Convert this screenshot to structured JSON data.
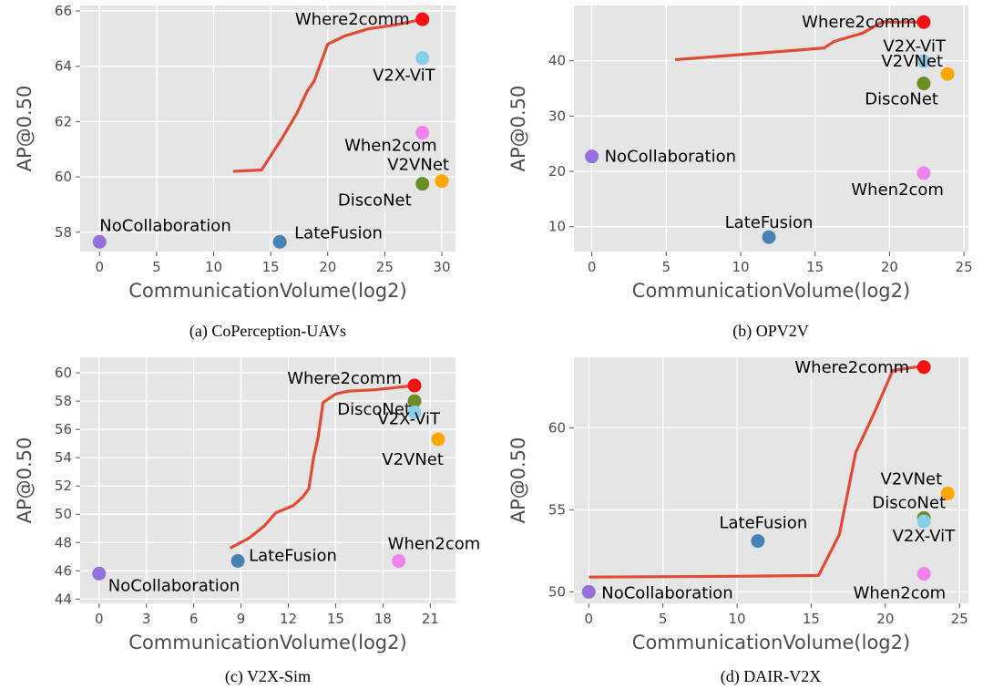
{
  "colors": {
    "panel_bg": "#e5e5e5",
    "grid": "#ffffff",
    "line": "#e24a33",
    "Where2comm": "#f21212",
    "V2X-ViT": "#87ceeb",
    "When2com": "#ee82ee",
    "V2VNet": "#ffa500",
    "DiscoNet": "#6b8e23",
    "NoCollaboration": "#9370db",
    "LateFusion": "#4682b4"
  },
  "chart_data": [
    {
      "type": "scatter",
      "caption": "(a) CoPerception-UAVs",
      "xlabel": "CommunicationVolume(log2)",
      "ylabel": "AP@0.50",
      "xlim": [
        -1.7,
        31.2
      ],
      "ylim": [
        57.3,
        66.2
      ],
      "xticks": [
        0,
        5,
        10,
        15,
        20,
        25,
        30
      ],
      "yticks": [
        58,
        60,
        62,
        64,
        66
      ],
      "grid": true,
      "line": {
        "name": "Where2comm",
        "x": [
          11.7,
          14.2,
          16.0,
          17.3,
          18.2,
          18.8,
          20.0,
          21.5,
          23.5,
          26.0,
          28.3
        ],
        "y": [
          60.2,
          60.25,
          61.4,
          62.3,
          63.1,
          63.45,
          64.8,
          65.1,
          65.35,
          65.5,
          65.7
        ]
      },
      "points": [
        {
          "name": "Where2comm",
          "x": 28.3,
          "y": 65.7
        },
        {
          "name": "V2X-ViT",
          "x": 28.3,
          "y": 64.3
        },
        {
          "name": "When2com",
          "x": 28.3,
          "y": 61.6
        },
        {
          "name": "V2VNet",
          "x": 30.0,
          "y": 59.85
        },
        {
          "name": "DiscoNet",
          "x": 28.3,
          "y": 59.75
        },
        {
          "name": "NoCollaboration",
          "x": 0,
          "y": 57.65
        },
        {
          "name": "LateFusion",
          "x": 15.8,
          "y": 57.65
        }
      ]
    },
    {
      "type": "scatter",
      "caption": "(b) OPV2V",
      "xlabel": "CommunicationVolume(log2)",
      "ylabel": "AP@0.50",
      "xlim": [
        -1.2,
        25.3
      ],
      "ylim": [
        5.5,
        50
      ],
      "xticks": [
        0,
        5,
        10,
        15,
        20,
        25
      ],
      "yticks": [
        10,
        20,
        30,
        40
      ],
      "grid": true,
      "line": {
        "name": "Where2comm",
        "x": [
          5.6,
          15.6,
          16.3,
          18.2,
          19.5,
          22.3
        ],
        "y": [
          40.2,
          42.3,
          43.5,
          45.0,
          47.0,
          47.0
        ]
      },
      "points": [
        {
          "name": "Where2comm",
          "x": 22.3,
          "y": 47.0
        },
        {
          "name": "V2X-ViT",
          "x": 22.3,
          "y": 39.9
        },
        {
          "name": "V2VNet",
          "x": 23.9,
          "y": 37.6
        },
        {
          "name": "DiscoNet",
          "x": 22.3,
          "y": 35.9
        },
        {
          "name": "NoCollaboration",
          "x": 0,
          "y": 22.7
        },
        {
          "name": "When2com",
          "x": 22.3,
          "y": 19.7
        },
        {
          "name": "LateFusion",
          "x": 11.9,
          "y": 8.1
        }
      ]
    },
    {
      "type": "scatter",
      "caption": "(c) V2X-Sim",
      "xlabel": "CommunicationVolume(log2)",
      "ylabel": "AP@0.50",
      "xlim": [
        -1.2,
        22.6
      ],
      "ylim": [
        43.7,
        61.1
      ],
      "xticks": [
        0,
        3,
        6,
        9,
        12,
        15,
        18,
        21
      ],
      "yticks": [
        44,
        46,
        48,
        50,
        52,
        54,
        56,
        58,
        60
      ],
      "grid": true,
      "line": {
        "name": "Where2comm",
        "x": [
          8.3,
          9.5,
          10.5,
          11.2,
          12.3,
          12.9,
          13.3,
          13.6,
          13.9,
          14.2,
          15.0,
          15.8,
          17.5,
          20.0
        ],
        "y": [
          47.6,
          48.3,
          49.2,
          50.1,
          50.6,
          51.2,
          51.8,
          54.0,
          55.5,
          57.9,
          58.5,
          58.7,
          58.8,
          59.1
        ]
      },
      "points": [
        {
          "name": "Where2comm",
          "x": 20.0,
          "y": 59.1
        },
        {
          "name": "DiscoNet",
          "x": 20.0,
          "y": 58.0
        },
        {
          "name": "V2X-ViT",
          "x": 20.0,
          "y": 57.2
        },
        {
          "name": "V2VNet",
          "x": 21.5,
          "y": 55.3
        },
        {
          "name": "When2com",
          "x": 19.0,
          "y": 46.7
        },
        {
          "name": "LateFusion",
          "x": 8.8,
          "y": 46.7
        },
        {
          "name": "NoCollaboration",
          "x": 0,
          "y": 45.8
        }
      ]
    },
    {
      "type": "scatter",
      "caption": "(d) DAIR-V2X",
      "xlabel": "CommunicationVolume(log2)",
      "ylabel": "AP@0.50",
      "xlim": [
        -1.0,
        25.6
      ],
      "ylim": [
        49.3,
        64.3
      ],
      "xticks": [
        0,
        5,
        10,
        15,
        20,
        25
      ],
      "yticks": [
        50,
        55,
        60
      ],
      "grid": true,
      "line": {
        "name": "Where2comm",
        "x": [
          0.0,
          10.0,
          15.5,
          16.9,
          18.0,
          19.3,
          20.5,
          22.0,
          22.6
        ],
        "y": [
          50.9,
          50.95,
          51.0,
          53.5,
          58.5,
          61.0,
          63.5,
          63.7,
          63.7
        ]
      },
      "points": [
        {
          "name": "Where2comm",
          "x": 22.6,
          "y": 63.7
        },
        {
          "name": "V2VNet",
          "x": 24.2,
          "y": 56.0
        },
        {
          "name": "DiscoNet",
          "x": 22.6,
          "y": 54.5
        },
        {
          "name": "V2X-ViT",
          "x": 22.6,
          "y": 54.3
        },
        {
          "name": "LateFusion",
          "x": 11.4,
          "y": 53.1
        },
        {
          "name": "When2com",
          "x": 22.6,
          "y": 51.1
        },
        {
          "name": "NoCollaboration",
          "x": 0,
          "y": 50.0
        }
      ]
    }
  ]
}
